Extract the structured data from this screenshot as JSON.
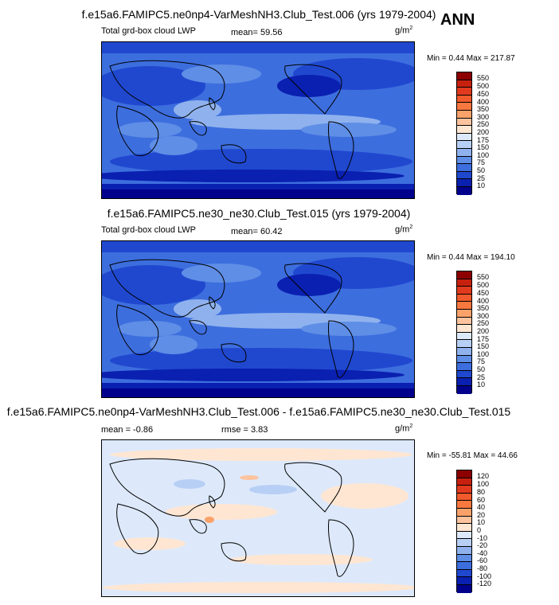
{
  "season": "ANN",
  "panels": [
    {
      "title": "f.e15a6.FAMIPC5.ne0np4-VarMeshNH3.Club_Test.006 (yrs 1979-2004)",
      "variable": "Total grd-box cloud LWP",
      "stat_text": "mean=  59.56",
      "units_base": "g/m",
      "units_exp": "2",
      "minmax": "Min =   0.44 Max = 217.87",
      "colorbar_labels": [
        "550",
        "500",
        "450",
        "400",
        "350",
        "300",
        "250",
        "200",
        "175",
        "150",
        "100",
        "75",
        "50",
        "25",
        "10"
      ],
      "colorbar_colors": [
        "#8c0000",
        "#c8200f",
        "#e23a1e",
        "#f05a2c",
        "#f8783f",
        "#fba26a",
        "#fdc39e",
        "#ffe6d2",
        "#dde9fb",
        "#b8cff5",
        "#8fb2ee",
        "#5f8ee6",
        "#3d6ede",
        "#2048cf",
        "#0a20b0",
        "#00008c"
      ],
      "map_kind": "abs"
    },
    {
      "title": "f.e15a6.FAMIPC5.ne30_ne30.Club_Test.015 (yrs 1979-2004)",
      "variable": "Total grd-box cloud LWP",
      "stat_text": "mean=  60.42",
      "units_base": "g/m",
      "units_exp": "2",
      "minmax": "Min =   0.44 Max = 194.10",
      "colorbar_labels": [
        "550",
        "500",
        "450",
        "400",
        "350",
        "300",
        "250",
        "200",
        "175",
        "150",
        "100",
        "75",
        "50",
        "25",
        "10"
      ],
      "colorbar_colors": [
        "#8c0000",
        "#c8200f",
        "#e23a1e",
        "#f05a2c",
        "#f8783f",
        "#fba26a",
        "#fdc39e",
        "#ffe6d2",
        "#dde9fb",
        "#b8cff5",
        "#8fb2ee",
        "#5f8ee6",
        "#3d6ede",
        "#2048cf",
        "#0a20b0",
        "#00008c"
      ],
      "map_kind": "abs"
    },
    {
      "title": "f.e15a6.FAMIPC5.ne0np4-VarMeshNH3.Club_Test.006 - f.e15a6.FAMIPC5.ne30_ne30.Club_Test.015",
      "mean_text": "mean =  -0.86",
      "rmse_text": "rmse =   3.83",
      "units_base": "g/m",
      "units_exp": "2",
      "minmax": "Min = -55.81 Max =  44.66",
      "colorbar_labels": [
        "120",
        "100",
        "80",
        "60",
        "40",
        "20",
        "10",
        "0",
        "-10",
        "-20",
        "-40",
        "-60",
        "-80",
        "-100",
        "-120"
      ],
      "colorbar_colors": [
        "#8c0000",
        "#c8200f",
        "#e23a1e",
        "#f05a2c",
        "#f8783f",
        "#fba26a",
        "#fdc39e",
        "#ffe6d2",
        "#dde9fb",
        "#b8cff5",
        "#8fb2ee",
        "#5f8ee6",
        "#3d6ede",
        "#2048cf",
        "#0a20b0",
        "#00008c"
      ],
      "map_kind": "diff"
    }
  ]
}
